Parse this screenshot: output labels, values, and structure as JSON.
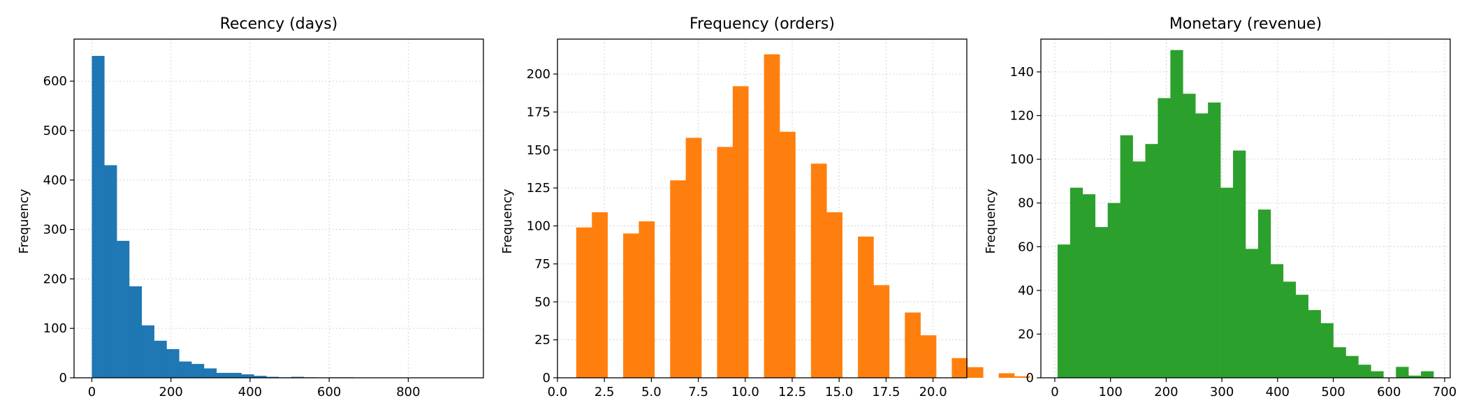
{
  "chart_data": [
    {
      "type": "bar",
      "title": "Recency (days)",
      "xlabel": "",
      "ylabel": "Frequency",
      "color": "#1f77b4",
      "grid": true,
      "xlim": [
        -45,
        990
      ],
      "ylim": [
        0,
        685
      ],
      "xticks": [
        0,
        200,
        400,
        600,
        800
      ],
      "xtick_labels": [
        "0",
        "200",
        "400",
        "600",
        "800"
      ],
      "yticks": [
        0,
        100,
        200,
        300,
        400,
        500,
        600
      ],
      "ytick_labels": [
        "0",
        "100",
        "200",
        "300",
        "400",
        "500",
        "600"
      ],
      "bins": {
        "start": 0,
        "width": 31.5,
        "values": [
          651,
          430,
          277,
          185,
          106,
          75,
          58,
          33,
          28,
          19,
          10,
          10,
          7,
          4,
          2,
          1,
          2,
          1,
          0,
          1,
          1,
          0,
          0,
          0,
          0,
          0,
          0,
          0,
          0,
          0
        ]
      }
    },
    {
      "type": "bar",
      "title": "Frequency (orders)",
      "xlabel": "",
      "ylabel": "Frequency",
      "color": "#ff7f0e",
      "grid": true,
      "xlim": [
        0,
        21.8
      ],
      "ylim": [
        0,
        223
      ],
      "xticks": [
        0,
        2.5,
        5,
        7.5,
        10,
        12.5,
        15,
        17.5,
        20
      ],
      "xtick_labels": [
        "0.0",
        "2.5",
        "5.0",
        "7.5",
        "10.0",
        "12.5",
        "15.0",
        "17.5",
        "20.0"
      ],
      "yticks": [
        0,
        25,
        50,
        75,
        100,
        125,
        150,
        175,
        200
      ],
      "ytick_labels": [
        "0",
        "25",
        "50",
        "75",
        "100",
        "125",
        "150",
        "175",
        "200"
      ],
      "bins": {
        "start": 1,
        "width": 0.8333,
        "values": [
          99,
          109,
          0,
          95,
          103,
          0,
          130,
          158,
          0,
          152,
          192,
          0,
          213,
          162,
          0,
          141,
          109,
          0,
          93,
          61,
          0,
          43,
          28,
          0,
          13,
          7,
          0,
          3,
          1,
          0
        ]
      }
    },
    {
      "type": "bar",
      "title": "Monetary (revenue)",
      "xlabel": "",
      "ylabel": "Frequency",
      "color": "#2ca02c",
      "grid": true,
      "xlim": [
        -25,
        710
      ],
      "ylim": [
        0,
        155
      ],
      "xticks": [
        0,
        100,
        200,
        300,
        400,
        500,
        600,
        700
      ],
      "xtick_labels": [
        "0",
        "100",
        "200",
        "300",
        "400",
        "500",
        "600",
        "700"
      ],
      "yticks": [
        0,
        20,
        40,
        60,
        80,
        100,
        120,
        140
      ],
      "ytick_labels": [
        "0",
        "20",
        "40",
        "60",
        "80",
        "100",
        "120",
        "140"
      ],
      "bins": {
        "start": 5,
        "width": 22.5,
        "values": [
          61,
          87,
          84,
          69,
          80,
          111,
          99,
          107,
          128,
          150,
          130,
          121,
          126,
          87,
          104,
          59,
          77,
          52,
          44,
          38,
          31,
          25,
          14,
          10,
          6,
          3,
          0,
          5,
          1,
          3
        ]
      }
    }
  ]
}
